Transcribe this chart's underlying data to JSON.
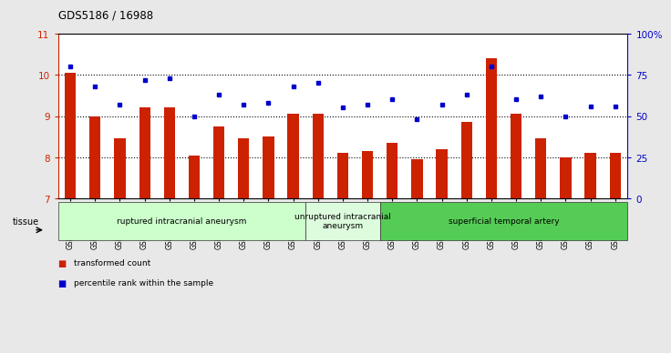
{
  "title": "GDS5186 / 16988",
  "samples": [
    "GSM1306885",
    "GSM1306886",
    "GSM1306887",
    "GSM1306888",
    "GSM1306889",
    "GSM1306890",
    "GSM1306891",
    "GSM1306892",
    "GSM1306893",
    "GSM1306894",
    "GSM1306895",
    "GSM1306896",
    "GSM1306897",
    "GSM1306898",
    "GSM1306899",
    "GSM1306900",
    "GSM1306901",
    "GSM1306902",
    "GSM1306903",
    "GSM1306904",
    "GSM1306905",
    "GSM1306906",
    "GSM1306907"
  ],
  "bar_values": [
    10.05,
    9.0,
    8.45,
    9.2,
    9.2,
    8.05,
    8.75,
    8.45,
    8.5,
    9.05,
    9.05,
    8.1,
    8.15,
    8.35,
    7.95,
    8.2,
    8.85,
    10.4,
    9.05,
    8.45,
    8.0,
    8.1,
    8.1
  ],
  "blue_values": [
    80,
    68,
    57,
    72,
    73,
    50,
    63,
    57,
    58,
    68,
    70,
    55,
    57,
    60,
    48,
    57,
    63,
    80,
    60,
    62,
    50,
    56,
    56
  ],
  "bar_color": "#cc2200",
  "blue_color": "#0000cc",
  "ylim_left": [
    7,
    11
  ],
  "ylim_right": [
    0,
    100
  ],
  "yticks_left": [
    7,
    8,
    9,
    10,
    11
  ],
  "yticks_right": [
    0,
    25,
    50,
    75,
    100
  ],
  "ytick_labels_right": [
    "0",
    "25",
    "50",
    "75",
    "100%"
  ],
  "groups": [
    {
      "label": "ruptured intracranial aneurysm",
      "start": 0,
      "end": 10,
      "color": "#ccffcc"
    },
    {
      "label": "unruptured intracranial\naneurysm",
      "start": 10,
      "end": 13,
      "color": "#ddfcdd"
    },
    {
      "label": "superficial temporal artery",
      "start": 13,
      "end": 23,
      "color": "#55cc55"
    }
  ],
  "tissue_label": "tissue",
  "legend_items": [
    {
      "label": "transformed count",
      "color": "#cc2200"
    },
    {
      "label": "percentile rank within the sample",
      "color": "#0000cc"
    }
  ],
  "background_color": "#e8e8e8",
  "plot_bg_color": "#ffffff",
  "dotted_lines": [
    8,
    9,
    10
  ]
}
